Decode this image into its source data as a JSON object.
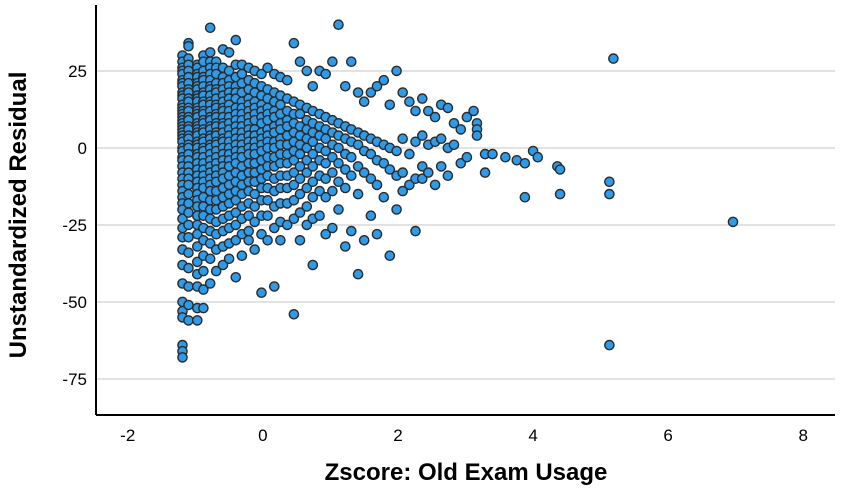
{
  "chart_data": {
    "type": "scatter",
    "title": "",
    "xlabel": "Zscore: Old Exam Usage",
    "ylabel": "Unstandardized Residual",
    "xlim": [
      -2.47,
      8.47
    ],
    "ylim": [
      -86.7,
      46.4
    ],
    "x_ticks": [
      -2,
      0,
      2,
      4,
      6,
      8
    ],
    "y_ticks": [
      25,
      0,
      -25,
      -50,
      -75
    ],
    "grid": "horizontal-only",
    "legend": "none",
    "frame": "left-and-bottom-axes",
    "style": {
      "marker_fill": "#2F9BE8",
      "marker_stroke": "#2b2b2b",
      "marker_radius": 4.6,
      "marker_stroke_width": 1.4,
      "grid_color": "#c4c4c4",
      "axis_color": "#000000",
      "background": "#ffffff"
    },
    "columns": [
      {
        "x": -1.19,
        "ys": [
          30,
          28,
          26,
          25,
          24,
          22,
          21,
          20,
          18,
          17,
          16,
          14,
          13,
          12,
          11,
          10,
          9,
          8,
          7,
          6,
          5,
          4,
          3,
          2,
          0,
          -1,
          -3,
          -4,
          -6,
          -8,
          -10,
          -12,
          -14,
          -16,
          -18,
          -20,
          -23,
          -26,
          -29,
          -33,
          -38,
          -44,
          -50,
          -53,
          -55,
          -64,
          -66,
          -68
        ]
      },
      {
        "x": -1.1,
        "ys": [
          34,
          33,
          29,
          27,
          25,
          23,
          21,
          19,
          18,
          16,
          15,
          13,
          12,
          10,
          9,
          7,
          6,
          4,
          3,
          1,
          0,
          -2,
          -4,
          -6,
          -8,
          -10,
          -12,
          -15,
          -18,
          -21,
          -25,
          -29,
          -34,
          -39,
          -45,
          -51,
          -56
        ]
      },
      {
        "x": -0.97,
        "ys": [
          27,
          26,
          24,
          23,
          21,
          20,
          19,
          17,
          16,
          15,
          13,
          12,
          11,
          10,
          8,
          7,
          6,
          5,
          4,
          2,
          1,
          0,
          -2,
          -3,
          -5,
          -7,
          -9,
          -11,
          -13,
          -15,
          -17,
          -19,
          -22,
          -25,
          -28,
          -32,
          -37,
          -41,
          -45,
          -52,
          -56
        ]
      },
      {
        "x": -0.88,
        "ys": [
          30,
          28,
          25,
          23,
          22,
          20,
          18,
          17,
          15,
          14,
          12,
          11,
          9,
          8,
          6,
          5,
          3,
          2,
          0,
          -1,
          -3,
          -5,
          -7,
          -9,
          -11,
          -13,
          -16,
          -19,
          -22,
          -26,
          -30,
          -35,
          -40,
          -46,
          -52
        ]
      },
      {
        "x": -0.78,
        "ys": [
          39,
          31,
          28,
          26,
          24,
          22,
          20,
          19,
          17,
          15,
          14,
          12,
          10,
          9,
          7,
          6,
          4,
          3,
          1,
          0,
          -2,
          -4,
          -6,
          -8,
          -10,
          -12,
          -14,
          -17,
          -20,
          -23,
          -27,
          -31,
          -36,
          -44
        ]
      },
      {
        "x": -0.69,
        "ys": [
          28,
          26,
          24,
          21,
          19,
          18,
          16,
          14,
          13,
          11,
          10,
          8,
          7,
          5,
          4,
          2,
          1,
          -1,
          -3,
          -5,
          -7,
          -9,
          -11,
          -14,
          -17,
          -20,
          -24,
          -28,
          -33,
          -40
        ]
      },
      {
        "x": -0.59,
        "ys": [
          32,
          26,
          23,
          21,
          19,
          17,
          15,
          13,
          12,
          10,
          8,
          7,
          5,
          3,
          2,
          0,
          -2,
          -4,
          -6,
          -8,
          -10,
          -13,
          -16,
          -19,
          -23,
          -27,
          -32,
          -38
        ]
      },
      {
        "x": -0.5,
        "ys": [
          31,
          25,
          22,
          20,
          18,
          16,
          14,
          12,
          10,
          8,
          6,
          4,
          2,
          0,
          -2,
          -4,
          -6,
          -9,
          -12,
          -15,
          -18,
          -22,
          -26,
          -31,
          -36
        ]
      },
      {
        "x": -0.4,
        "ys": [
          35,
          27,
          23,
          20,
          18,
          16,
          13,
          11,
          9,
          7,
          5,
          3,
          1,
          -1,
          -3,
          -5,
          -8,
          -11,
          -14,
          -17,
          -21,
          -25,
          -30,
          -42
        ]
      },
      {
        "x": -0.31,
        "ys": [
          27,
          24,
          21,
          18,
          15,
          13,
          11,
          9,
          7,
          5,
          3,
          1,
          -1,
          -3,
          -6,
          -9,
          -12,
          -15,
          -19,
          -23,
          -28,
          -35
        ]
      },
      {
        "x": -0.21,
        "ys": [
          26,
          22,
          19,
          16,
          14,
          12,
          10,
          8,
          6,
          4,
          2,
          0,
          -2,
          -5,
          -8,
          -11,
          -14,
          -18,
          -22,
          -27,
          -30
        ]
      },
      {
        "x": -0.12,
        "ys": [
          25,
          21,
          18,
          15,
          13,
          11,
          9,
          6,
          4,
          2,
          0,
          -2,
          -5,
          -8,
          -11,
          -15,
          -19,
          -24,
          -33
        ]
      },
      {
        "x": -0.02,
        "ys": [
          24,
          20,
          17,
          14,
          12,
          10,
          8,
          5,
          3,
          1,
          -1,
          -4,
          -7,
          -10,
          -13,
          -17,
          -22,
          -28,
          -47
        ]
      },
      {
        "x": 0.07,
        "ys": [
          26,
          19,
          16,
          13,
          11,
          9,
          6,
          4,
          2,
          0,
          -3,
          -6,
          -9,
          -13,
          -17,
          -22,
          -30
        ]
      },
      {
        "x": 0.17,
        "ys": [
          24,
          18,
          15,
          12,
          10,
          7,
          5,
          2,
          0,
          -3,
          -6,
          -10,
          -14,
          -19,
          -26,
          -45
        ]
      },
      {
        "x": 0.26,
        "ys": [
          23,
          17,
          14,
          11,
          8,
          6,
          3,
          1,
          -2,
          -5,
          -9,
          -13,
          -18,
          -24,
          -30
        ]
      },
      {
        "x": 0.36,
        "ys": [
          22,
          16,
          12,
          9,
          7,
          4,
          1,
          -2,
          -5,
          -9,
          -13,
          -18,
          -25
        ]
      },
      {
        "x": 0.46,
        "ys": [
          34,
          15,
          11,
          8,
          5,
          2,
          -1,
          -4,
          -8,
          -12,
          -17,
          -23,
          -54
        ]
      },
      {
        "x": 0.55,
        "ys": [
          28,
          14,
          11,
          7,
          4,
          1,
          -2,
          -6,
          -10,
          -15,
          -21,
          -30
        ]
      },
      {
        "x": 0.65,
        "ys": [
          25,
          13,
          9,
          6,
          3,
          0,
          -4,
          -8,
          -13,
          -19,
          -25
        ]
      },
      {
        "x": 0.74,
        "ys": [
          20,
          12,
          8,
          5,
          2,
          -2,
          -6,
          -11,
          -16,
          -23,
          -38
        ]
      },
      {
        "x": 0.84,
        "ys": [
          25,
          11,
          7,
          4,
          0,
          -4,
          -9,
          -14,
          -22
        ]
      },
      {
        "x": 0.93,
        "ys": [
          24,
          10,
          6,
          3,
          -1,
          -5,
          -10,
          -16,
          -28
        ]
      },
      {
        "x": 1.03,
        "ys": [
          28,
          9,
          5,
          1,
          -3,
          -8,
          -14,
          -26
        ]
      },
      {
        "x": 1.12,
        "ys": [
          40,
          8,
          4,
          0,
          -5,
          -11,
          -20
        ]
      },
      {
        "x": 1.22,
        "ys": [
          20,
          7,
          3,
          -2,
          -7,
          -13,
          -32
        ]
      },
      {
        "x": 1.31,
        "ys": [
          28,
          6,
          2,
          -3,
          -9,
          -27
        ]
      },
      {
        "x": 1.41,
        "ys": [
          18,
          5,
          1,
          -6,
          -15,
          -41
        ]
      },
      {
        "x": 1.5,
        "ys": [
          15,
          4,
          -1,
          -8,
          -30
        ]
      },
      {
        "x": 1.6,
        "ys": [
          18,
          3,
          -2,
          -10,
          -22
        ]
      },
      {
        "x": 1.69,
        "ys": [
          20,
          2,
          -4,
          -12,
          -28
        ]
      },
      {
        "x": 1.79,
        "ys": [
          22,
          1,
          -5,
          -16
        ]
      },
      {
        "x": 1.88,
        "ys": [
          14,
          0,
          -7,
          -35
        ]
      },
      {
        "x": 1.98,
        "ys": [
          25,
          -1,
          -9,
          -20
        ]
      },
      {
        "x": 2.07,
        "ys": [
          18,
          3,
          -8,
          -14
        ]
      },
      {
        "x": 2.17,
        "ys": [
          15,
          -2,
          -12
        ]
      },
      {
        "x": 2.26,
        "ys": [
          12,
          2,
          -10,
          -27
        ]
      },
      {
        "x": 2.36,
        "ys": [
          16,
          4,
          -6,
          -10
        ]
      },
      {
        "x": 2.45,
        "ys": [
          12,
          1,
          -8
        ]
      },
      {
        "x": 2.55,
        "ys": [
          10,
          2,
          -12
        ]
      },
      {
        "x": 2.64,
        "ys": [
          14,
          3,
          -6
        ]
      },
      {
        "x": 2.74,
        "ys": [
          13,
          0,
          -9
        ]
      },
      {
        "x": 2.83,
        "ys": [
          8,
          1
        ]
      },
      {
        "x": 2.93,
        "ys": [
          6,
          -5
        ]
      },
      {
        "x": 3.02,
        "ys": [
          10,
          -3
        ]
      },
      {
        "x": 3.12,
        "ys": [
          12
        ]
      },
      {
        "x": 3.17,
        "ys": [
          8,
          6,
          4
        ]
      },
      {
        "x": 3.29,
        "ys": [
          -2,
          -8
        ]
      },
      {
        "x": 3.4,
        "ys": [
          -2
        ]
      },
      {
        "x": 3.59,
        "ys": [
          -3
        ]
      },
      {
        "x": 3.76,
        "ys": [
          -4
        ]
      },
      {
        "x": 3.88,
        "ys": [
          -5,
          -16
        ]
      },
      {
        "x": 4.0,
        "ys": [
          -1
        ]
      },
      {
        "x": 4.07,
        "ys": [
          -3
        ]
      },
      {
        "x": 4.36,
        "ys": [
          -6
        ]
      },
      {
        "x": 4.4,
        "ys": [
          -7,
          -15
        ]
      },
      {
        "x": 5.13,
        "ys": [
          -11,
          -15,
          -64
        ]
      },
      {
        "x": 5.19,
        "ys": [
          29
        ]
      },
      {
        "x": 6.96,
        "ys": [
          -24
        ]
      }
    ]
  }
}
